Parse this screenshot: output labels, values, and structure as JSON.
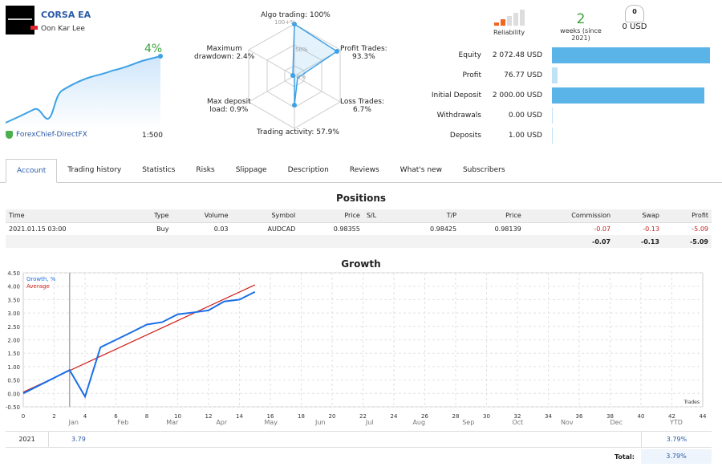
{
  "header": {
    "title": "CORSA EA",
    "author": "Oon Kar Lee",
    "growth_pct": "4%",
    "broker": "ForexChief-DirectFX",
    "leverage": "1:500"
  },
  "radar": {
    "algo": "Algo trading: 100%",
    "profit": "Profit Trades:",
    "profit_v": "93.3%",
    "loss": "Loss Trades:",
    "loss_v": "6.7%",
    "activity": "Trading activity: 57.9%",
    "deposit": "Max deposit",
    "deposit_v": "load: 0.9%",
    "drawdown": "Maximum",
    "drawdown_v": "drawdown: 2.4%",
    "scale_100": "100+%",
    "scale_50": "50%",
    "scale_0": "0%",
    "values": {
      "algo": 100,
      "profit": 93.3,
      "loss": 6.7,
      "activity": 57.9,
      "deposit": 0.9,
      "drawdown": 2.4
    }
  },
  "stats": {
    "reliability_label": "Reliability",
    "reliability_level": 2,
    "weeks": "2",
    "weeks_label": "weeks (since 2021)",
    "subscribers": "0",
    "subscribers_usd": "0 USD",
    "accent": "#f26522"
  },
  "account": [
    {
      "label": "Equity",
      "value": "2 072.48 USD",
      "fraction": 1.0
    },
    {
      "label": "Profit",
      "value": "76.77 USD",
      "fraction": 0.037
    },
    {
      "label": "Initial Deposit",
      "value": "2 000.00 USD",
      "fraction": 0.965
    },
    {
      "label": "Withdrawals",
      "value": "0.00 USD",
      "fraction": 0
    },
    {
      "label": "Deposits",
      "value": "1.00 USD",
      "fraction": 0.0005
    }
  ],
  "tabs": [
    "Account",
    "Trading history",
    "Statistics",
    "Risks",
    "Slippage",
    "Description",
    "Reviews",
    "What's new",
    "Subscribers"
  ],
  "positions": {
    "title": "Positions",
    "headers": [
      "Time",
      "Type",
      "Volume",
      "Symbol",
      "Price",
      "S/L",
      "T/P",
      "Price",
      "Commission",
      "Swap",
      "Profit"
    ],
    "row": [
      "2021.01.15 03:00",
      "Buy",
      "0.03",
      "AUDCAD",
      "0.98355",
      "",
      "0.98425",
      "0.98139",
      "-0.07",
      "-0.13",
      "-5.09"
    ],
    "totals": [
      "-0.07",
      "-0.13",
      "-5.09"
    ]
  },
  "chart_data": {
    "type": "line",
    "title": "Growth",
    "xlabel": "Trades",
    "ylabel": "",
    "legend": [
      "Growth, %",
      "Average"
    ],
    "legend_placement": "top-left",
    "xlim": [
      0,
      44
    ],
    "ylim": [
      -0.5,
      4.5
    ],
    "xticks": [
      0,
      2,
      4,
      6,
      8,
      10,
      12,
      14,
      16,
      18,
      20,
      22,
      24,
      26,
      28,
      30,
      32,
      34,
      36,
      38,
      40,
      42,
      44
    ],
    "yticks": [
      "-0.50",
      "0.00",
      "0.50",
      "1.00",
      "1.50",
      "2.00",
      "2.50",
      "3.00",
      "3.50",
      "4.00",
      "4.50"
    ],
    "series": [
      {
        "name": "Growth, %",
        "color": "#1a6fe8",
        "x": [
          0,
          3,
          4,
          5,
          6,
          7,
          8,
          9,
          10,
          11,
          12,
          13,
          14,
          15
        ],
        "y": [
          0,
          0.87,
          -0.12,
          1.72,
          2.0,
          2.28,
          2.57,
          2.66,
          2.95,
          3.02,
          3.1,
          3.43,
          3.5,
          3.79
        ]
      },
      {
        "name": "Average",
        "color": "#d0201a",
        "x": [
          0,
          15
        ],
        "y": [
          0.05,
          4.05
        ]
      }
    ],
    "marker_x": 3
  },
  "monthly": {
    "months": [
      "Jan",
      "Feb",
      "Mar",
      "Apr",
      "May",
      "Jun",
      "Jul",
      "Aug",
      "Sep",
      "Oct",
      "Nov",
      "Dec"
    ],
    "ytd_label": "YTD",
    "year": "2021",
    "jan": "3.79",
    "ytd": "3.79%",
    "total_label": "Total:",
    "total": "3.79%"
  }
}
